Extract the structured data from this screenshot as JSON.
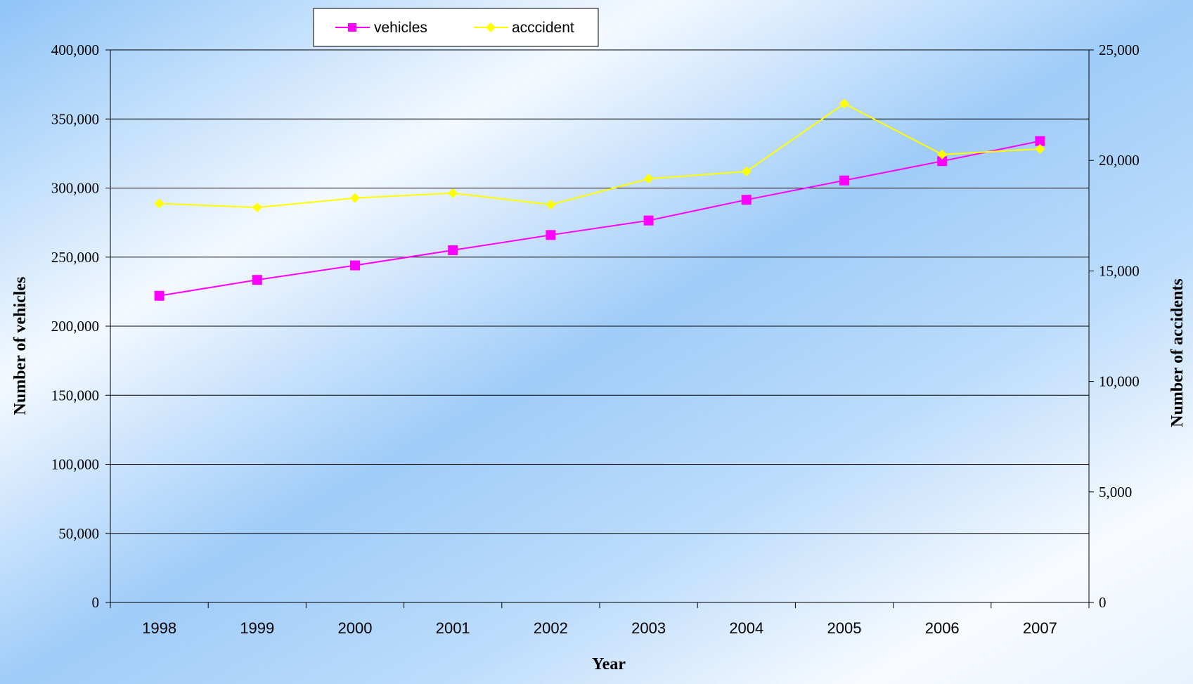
{
  "chart_data": {
    "type": "line",
    "categories": [
      "1998",
      "1999",
      "2000",
      "2001",
      "2002",
      "2003",
      "2004",
      "2005",
      "2006",
      "2007"
    ],
    "series": [
      {
        "name": "vehicles",
        "axis": "left",
        "color": "#ff00ff",
        "marker": "square",
        "values": [
          222000,
          233500,
          244000,
          255000,
          266000,
          276500,
          291500,
          305500,
          319500,
          334000
        ]
      },
      {
        "name": "acccident",
        "axis": "right",
        "color": "#ffff00",
        "marker": "diamond",
        "values": [
          18050,
          17870,
          18300,
          18520,
          18000,
          19170,
          19500,
          22570,
          20270,
          20520
        ]
      }
    ],
    "xlabel": "Year",
    "ylabel": "Number of vehicles",
    "y2label": "Number of accidents",
    "ylim": [
      0,
      400000
    ],
    "y2lim": [
      0,
      25000
    ],
    "yticks": [
      "0",
      "50,000",
      "100,000",
      "150,000",
      "200,000",
      "250,000",
      "300,000",
      "350,000",
      "400,000"
    ],
    "y2ticks": [
      "0",
      "5,000",
      "10,000",
      "15,000",
      "20,000",
      "25,000"
    ],
    "grid": "horizontal",
    "legend": "top-center",
    "plot_background": "#ffffff"
  }
}
